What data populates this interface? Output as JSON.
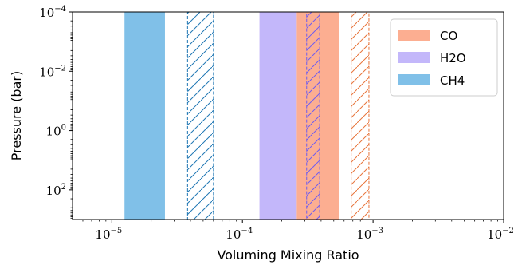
{
  "chart_data": {
    "type": "area",
    "title": "",
    "xlabel": "Voluming Mixing Ratio",
    "ylabel": "Pressure (bar)",
    "xscale": "log",
    "yscale": "log",
    "y_inverted": true,
    "xlim": [
      5e-06,
      0.01
    ],
    "ylim": [
      1000,
      0.0001
    ],
    "x_ticks": [
      {
        "value": 1e-05,
        "base": "10",
        "exp": "−5"
      },
      {
        "value": 0.0001,
        "base": "10",
        "exp": "−4"
      },
      {
        "value": 0.001,
        "base": "10",
        "exp": "−3"
      },
      {
        "value": 0.01,
        "base": "10",
        "exp": "−2"
      }
    ],
    "y_ticks": [
      {
        "value": 0.0001,
        "base": "10",
        "exp": "−4"
      },
      {
        "value": 0.01,
        "base": "10",
        "exp": "−2"
      },
      {
        "value": 1,
        "base": "10",
        "exp": "0"
      },
      {
        "value": 100,
        "base": "10",
        "exp": "2"
      }
    ],
    "legend_position": "top-right",
    "series": [
      {
        "name": "CO",
        "color": "#fcae91",
        "hatch_color": "#e8743b",
        "filled_range": [
          0.00026,
          0.00055
        ],
        "hatched_range": [
          0.00068,
          0.00093
        ]
      },
      {
        "name": "H2O",
        "color": "#c3b7fa",
        "hatch_color": "#6f5cf0",
        "filled_range": [
          0.000135,
          0.00026
        ],
        "hatched_range": [
          0.00031,
          0.00039
        ]
      },
      {
        "name": "CH4",
        "color": "#80c0e8",
        "hatch_color": "#1f77b4",
        "filled_range": [
          1.25e-05,
          2.55e-05
        ],
        "hatched_range": [
          3.8e-05,
          6e-05
        ]
      }
    ]
  }
}
